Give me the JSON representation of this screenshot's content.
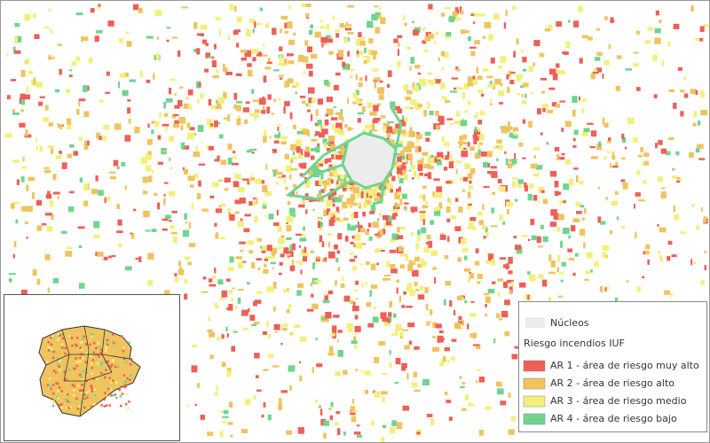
{
  "legend": {
    "nucleus": "Núcleos",
    "nucleus_color": "#ececec",
    "title": "Riesgo incendios IUF",
    "items": [
      {
        "label": "AR 1 - área de riesgo muy alto",
        "color": "#ef5f57"
      },
      {
        "label": "AR 2 - área de riesgo alto",
        "color": "#efc45f"
      },
      {
        "label": "AR 3 - área de riesgo medio",
        "color": "#f2f07a"
      },
      {
        "label": "AR 4 - área de riesgo bajo",
        "color": "#6fd58e"
      }
    ]
  }
}
